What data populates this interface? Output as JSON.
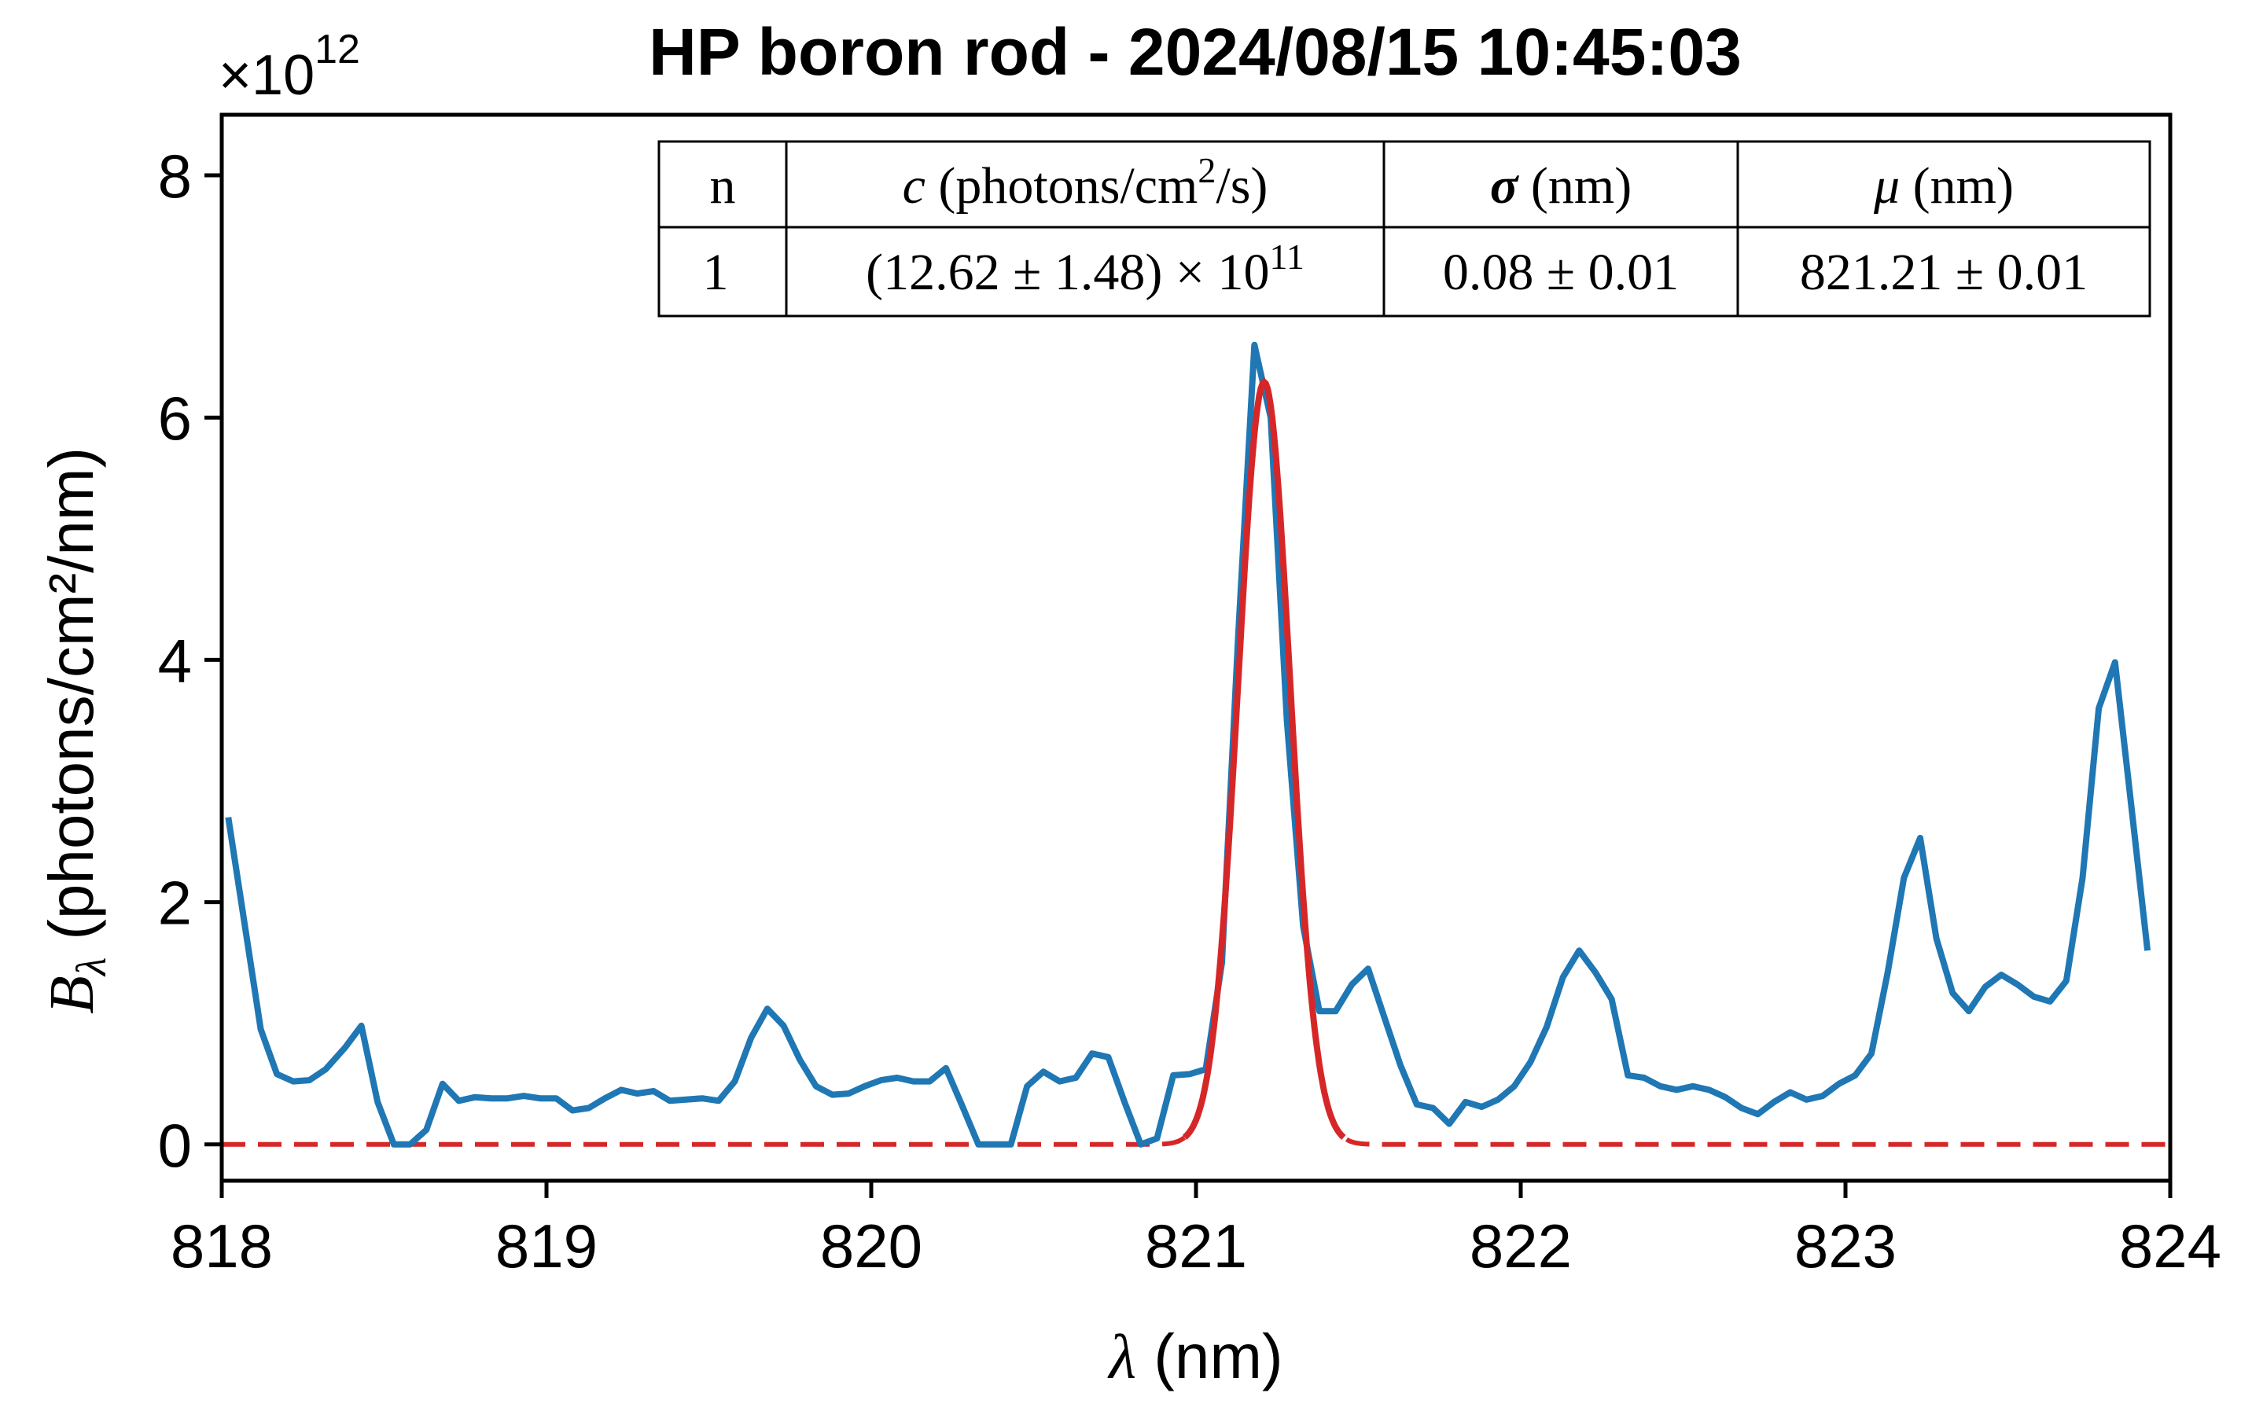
{
  "chart_data": {
    "type": "line",
    "title": "HP boron rod - 2024/08/15 10:45:03",
    "xlabel": "λ (nm)",
    "xlabel_symbol": "λ",
    "xlabel_unit": " (nm)",
    "ylabel_symbol": "B",
    "ylabel_subscript": "λ",
    "ylabel_unit": "(photons/cm²/nm)",
    "y_multiplier": "×10",
    "y_multiplier_exp": "12",
    "xlim": [
      818,
      824
    ],
    "ylim": [
      -0.3,
      8.5
    ],
    "y_scale": 1000000000000.0,
    "xticks": [
      818,
      819,
      820,
      821,
      822,
      823,
      824
    ],
    "xtick_labels": [
      "818",
      "819",
      "820",
      "821",
      "822",
      "823",
      "824"
    ],
    "yticks": [
      0,
      2,
      4,
      6,
      8
    ],
    "ytick_labels": [
      "0",
      "2",
      "4",
      "6",
      "8"
    ],
    "grid": false,
    "series": [
      {
        "color": "#1f77b4",
        "style": "solid",
        "x": [
          818.02,
          818.12,
          818.17,
          818.22,
          818.27,
          818.32,
          818.38,
          818.43,
          818.48,
          818.53,
          818.58,
          818.63,
          818.68,
          818.73,
          818.78,
          818.83,
          818.88,
          818.93,
          818.98,
          819.03,
          819.08,
          819.13,
          819.18,
          819.23,
          819.28,
          819.33,
          819.38,
          819.43,
          819.48,
          819.53,
          819.58,
          819.63,
          819.68,
          819.73,
          819.78,
          819.83,
          819.88,
          819.93,
          819.98,
          820.03,
          820.08,
          820.13,
          820.18,
          820.23,
          820.28,
          820.33,
          820.38,
          820.43,
          820.48,
          820.53,
          820.58,
          820.63,
          820.68,
          820.73,
          820.78,
          820.83,
          820.88,
          820.93,
          820.98,
          821.03,
          821.08,
          821.13,
          821.18,
          821.23,
          821.28,
          821.33,
          821.38,
          821.43,
          821.48,
          821.53,
          821.58,
          821.63,
          821.68,
          821.73,
          821.78,
          821.83,
          821.88,
          821.93,
          821.98,
          822.03,
          822.08,
          822.13,
          822.18,
          822.23,
          822.28,
          822.33,
          822.38,
          822.43,
          822.48,
          822.53,
          822.58,
          822.63,
          822.68,
          822.73,
          822.78,
          822.83,
          822.88,
          822.93,
          822.98,
          823.03,
          823.08,
          823.13,
          823.18,
          823.23,
          823.28,
          823.33,
          823.38,
          823.43,
          823.48,
          823.53,
          823.58,
          823.63,
          823.68,
          823.73,
          823.78,
          823.83,
          823.88,
          823.93
        ],
        "y": [
          2.7,
          0.95,
          0.58,
          0.52,
          0.53,
          0.62,
          0.8,
          0.98,
          0.35,
          0.0,
          0.0,
          0.12,
          0.5,
          0.36,
          0.39,
          0.38,
          0.38,
          0.4,
          0.38,
          0.38,
          0.28,
          0.3,
          0.38,
          0.45,
          0.42,
          0.44,
          0.36,
          0.37,
          0.38,
          0.36,
          0.52,
          0.88,
          1.12,
          0.98,
          0.7,
          0.48,
          0.41,
          0.42,
          0.48,
          0.53,
          0.55,
          0.52,
          0.52,
          0.63,
          0.32,
          0.0,
          0.0,
          0.0,
          0.48,
          0.6,
          0.52,
          0.55,
          0.75,
          0.72,
          0.35,
          0.0,
          0.05,
          0.57,
          0.58,
          0.62,
          1.5,
          4.2,
          6.6,
          6.0,
          3.5,
          1.8,
          1.1,
          1.1,
          1.32,
          1.45,
          1.05,
          0.65,
          0.33,
          0.3,
          0.17,
          0.35,
          0.31,
          0.37,
          0.48,
          0.68,
          0.97,
          1.38,
          1.6,
          1.42,
          1.2,
          0.57,
          0.55,
          0.48,
          0.45,
          0.48,
          0.45,
          0.39,
          0.3,
          0.25,
          0.35,
          0.43,
          0.37,
          0.4,
          0.5,
          0.57,
          0.75,
          1.42,
          2.2,
          2.53,
          1.7,
          1.25,
          1.1,
          1.3,
          1.4,
          1.32,
          1.22,
          1.18,
          1.35,
          2.2,
          3.6,
          3.98,
          2.8,
          1.6
        ]
      },
      {
        "color": "#d62728",
        "style": "gaussian-fit",
        "c": 12.62,
        "sigma": 0.08,
        "mu": 821.21
      }
    ],
    "table": {
      "headers": [
        "n",
        "c",
        " (photons/cm",
        "2",
        "/s)",
        "σ",
        " (nm)",
        "μ",
        " (nm)"
      ],
      "row": [
        "1",
        "(12.62 ± 1.48) × 10",
        "11",
        "0.08 ± 0.01",
        "821.21 ± 0.01"
      ]
    }
  }
}
